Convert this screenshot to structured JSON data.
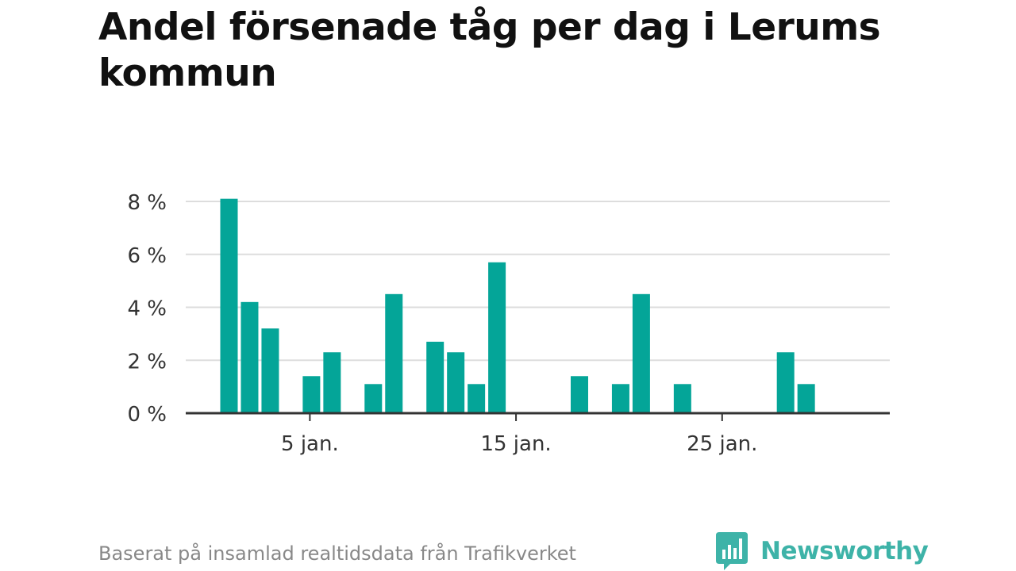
{
  "title": "Andel försenade tåg per dag i Lerums kommun",
  "footer": {
    "source": "Baserat på insamlad realtidsdata från Trafikverket",
    "brand": "Newsworthy",
    "brand_icon": "bar-chart-speech-bubble-icon"
  },
  "colors": {
    "bar": "#04a598",
    "grid": "#dddddd",
    "axis": "#333333",
    "brand": "#3eb3a8"
  },
  "chart_data": {
    "type": "bar",
    "title": "Andel försenade tåg per dag i Lerums kommun",
    "xlabel": "",
    "ylabel": "",
    "x_days": [
      1,
      2,
      3,
      4,
      5,
      6,
      7,
      8,
      9,
      10,
      11,
      12,
      13,
      14,
      15,
      16,
      17,
      18,
      19,
      20,
      21,
      22,
      23,
      24,
      25,
      26,
      27,
      28,
      29,
      30,
      31
    ],
    "values": [
      8.1,
      4.2,
      3.2,
      0,
      1.4,
      2.3,
      0,
      1.1,
      4.5,
      0,
      2.7,
      2.3,
      1.1,
      5.7,
      0,
      0,
      0,
      1.4,
      0,
      1.1,
      4.5,
      0,
      1.1,
      0,
      0,
      0,
      0,
      2.3,
      1.1,
      0,
      0
    ],
    "ylim": [
      0,
      8
    ],
    "y_ticks": [
      0,
      2,
      4,
      6,
      8
    ],
    "y_tick_labels": [
      "0 %",
      "2 %",
      "4 %",
      "6 %",
      "8 %"
    ],
    "x_ticks": [
      5,
      15,
      25
    ],
    "x_tick_labels": [
      "5 jan.",
      "15 jan.",
      "25 jan."
    ],
    "grid": true,
    "legend": "none"
  }
}
